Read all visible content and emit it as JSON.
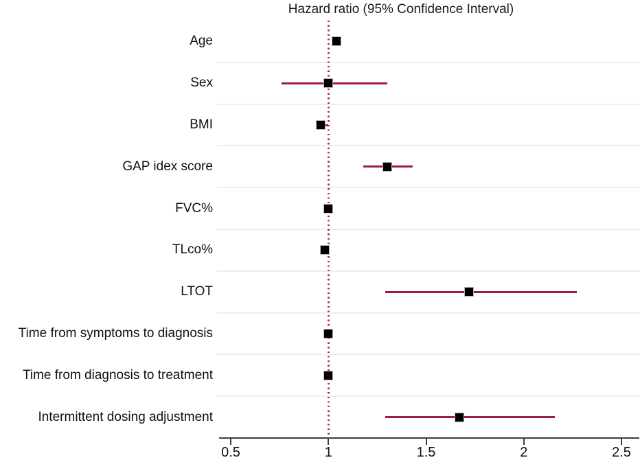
{
  "chart_data": {
    "type": "scatter",
    "variant": "forest-plot",
    "title": "Hazard ratio (95% Confidence Interval)",
    "xlabel": "",
    "ylabel": "",
    "legend": "none",
    "grid": "horizontal-row-separators",
    "xlim": [
      0.44,
      2.59
    ],
    "x_tick_values": [
      0.5,
      1,
      1.5,
      2,
      2.5
    ],
    "x_ticks": [
      "0.5",
      "1",
      "1.5",
      "2",
      "2.5"
    ],
    "reference_line_x": 1,
    "rows": [
      {
        "label": "Age",
        "hr": 1.04,
        "ci_low": 1.02,
        "ci_high": 1.06
      },
      {
        "label": "Sex",
        "hr": 1.0,
        "ci_low": 0.76,
        "ci_high": 1.3
      },
      {
        "label": "BMI",
        "hr": 0.96,
        "ci_low": 0.94,
        "ci_high": 1.0
      },
      {
        "label": "GAP idex score",
        "hr": 1.3,
        "ci_low": 1.18,
        "ci_high": 1.43
      },
      {
        "label": "FVC%",
        "hr": 1.0,
        "ci_low": 0.99,
        "ci_high": 1.01
      },
      {
        "label": "TLco%",
        "hr": 0.98,
        "ci_low": 0.97,
        "ci_high": 0.99
      },
      {
        "label": "LTOT",
        "hr": 1.72,
        "ci_low": 1.29,
        "ci_high": 2.27
      },
      {
        "label": "Time from symptoms to diagnosis",
        "hr": 1.0,
        "ci_low": 0.99,
        "ci_high": 1.01
      },
      {
        "label": "Time from diagnosis to treatment",
        "hr": 1.0,
        "ci_low": 0.99,
        "ci_high": 1.01
      },
      {
        "label": "Intermittent dosing adjustment",
        "hr": 1.67,
        "ci_low": 1.29,
        "ci_high": 2.16
      }
    ],
    "colors": {
      "ci_line": "#a11c44",
      "reference_line": "#ad2b50",
      "marker": "#000000",
      "marker_border": "#b8b8b8",
      "gridline": "#e8f1f0",
      "axis_line": "#3d3d3d",
      "text": "#111111",
      "background": "#ffffff"
    }
  }
}
